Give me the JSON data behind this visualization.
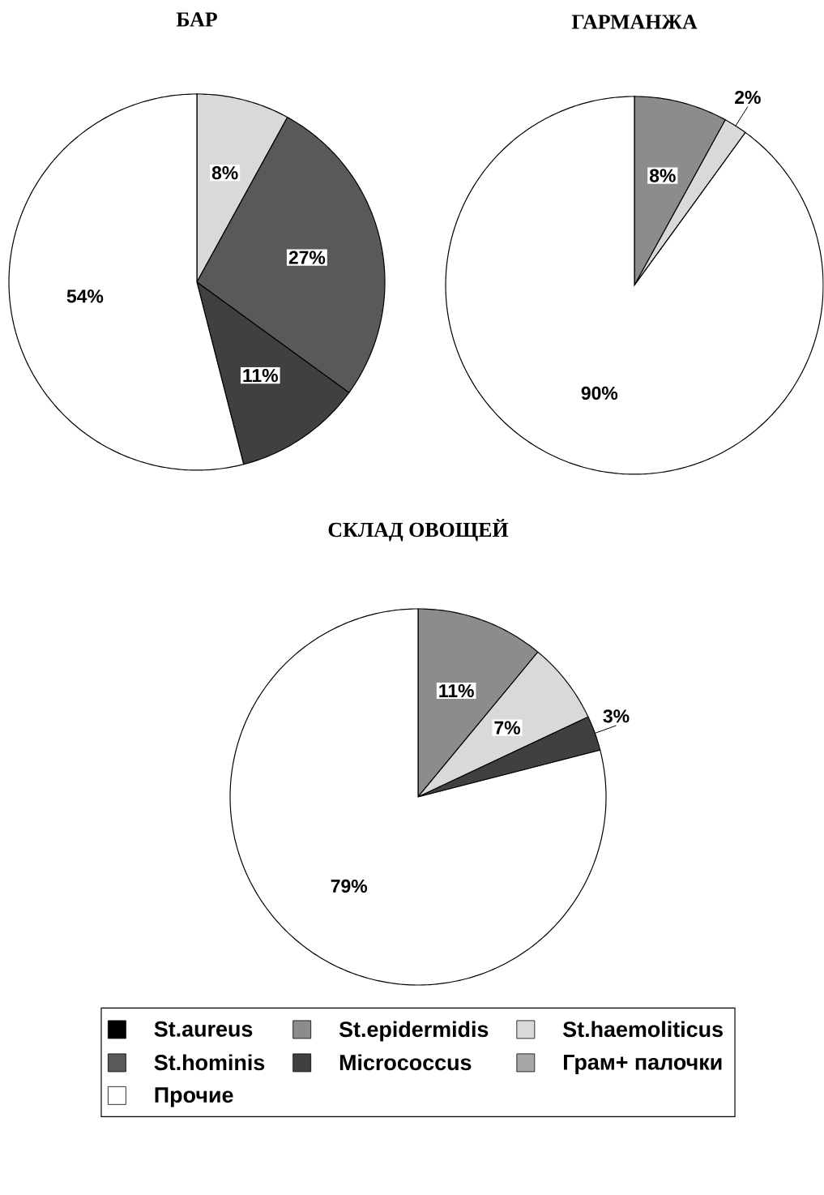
{
  "chart_data": [
    {
      "type": "pie",
      "title": "БАР",
      "values": [
        0,
        0,
        8,
        27,
        11,
        0,
        54
      ],
      "value_labels": [
        null,
        null,
        "8%",
        "27%",
        "11%",
        null,
        "54%"
      ],
      "colors": [
        "#000000",
        "#8c8c8c",
        "#d9d9d9",
        "#595959",
        "#404040",
        "#a6a6a6",
        "#ffffff"
      ],
      "legend": false
    },
    {
      "type": "pie",
      "title": "ГАРМАНЖА",
      "values": [
        0,
        8,
        2,
        0,
        0,
        0,
        90
      ],
      "value_labels": [
        null,
        "8%",
        "2%",
        null,
        null,
        null,
        "90%"
      ],
      "colors": [
        "#000000",
        "#8c8c8c",
        "#d9d9d9",
        "#595959",
        "#404040",
        "#a6a6a6",
        "#ffffff"
      ],
      "legend": false
    },
    {
      "type": "pie",
      "title": "СКЛАД ОВОЩЕЙ",
      "categories": [
        "St.aureus",
        "St.epidermidis",
        "St.haemoliticus",
        "St.hominis",
        "Micrococcus",
        "Грам+ палочки",
        "Прочие"
      ],
      "values": [
        0,
        11,
        7,
        0,
        3,
        0,
        79
      ],
      "value_labels": [
        null,
        "11%",
        "7%",
        null,
        "3%",
        null,
        "79%"
      ],
      "colors": [
        "#000000",
        "#8c8c8c",
        "#d9d9d9",
        "#595959",
        "#404040",
        "#a6a6a6",
        "#ffffff"
      ],
      "legend": "bottom"
    }
  ]
}
